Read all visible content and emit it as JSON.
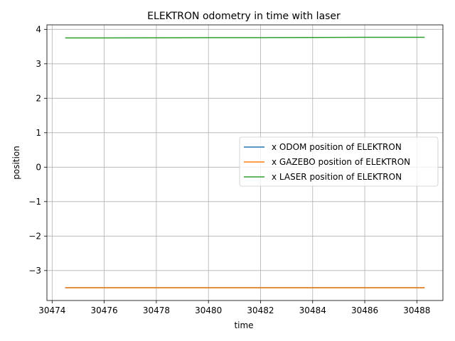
{
  "chart_data": {
    "type": "line",
    "title": "ELEKTRON odometry in time with laser",
    "xlabel": "time",
    "ylabel": "position",
    "xlim": [
      30473.8,
      30489.0
    ],
    "ylim": [
      -3.87,
      4.13
    ],
    "xticks": [
      30474,
      30476,
      30478,
      30480,
      30482,
      30484,
      30486,
      30488
    ],
    "yticks": [
      -3,
      -2,
      -1,
      0,
      1,
      2,
      3,
      4
    ],
    "xtick_labels": [
      "30474",
      "30476",
      "30478",
      "30480",
      "30482",
      "30484",
      "30486",
      "30488"
    ],
    "ytick_labels": [
      "−3",
      "−2",
      "−1",
      "0",
      "1",
      "2",
      "3",
      "4"
    ],
    "grid": true,
    "legend_position": "center-right",
    "series": [
      {
        "name": "x ODOM position of ELEKTRON",
        "color": "#1f77b4",
        "x": [
          30474.5,
          30476,
          30478,
          30480,
          30482,
          30484,
          30486,
          30488.3
        ],
        "y": [
          -3.5,
          -3.5,
          -3.5,
          -3.5,
          -3.5,
          -3.5,
          -3.5,
          -3.5
        ]
      },
      {
        "name": "x GAZEBO position of ELEKTRON",
        "color": "#ff7f0e",
        "x": [
          30474.5,
          30476,
          30478,
          30480,
          30482,
          30484,
          30486,
          30488.3
        ],
        "y": [
          -3.5,
          -3.5,
          -3.5,
          -3.5,
          -3.5,
          -3.5,
          -3.5,
          -3.5
        ]
      },
      {
        "name": "x LASER position of ELEKTRON",
        "color": "#2ca02c",
        "x": [
          30474.5,
          30476,
          30478,
          30480,
          30482,
          30484,
          30486,
          30488.3
        ],
        "y": [
          3.75,
          3.75,
          3.755,
          3.76,
          3.76,
          3.765,
          3.77,
          3.77
        ]
      }
    ]
  }
}
